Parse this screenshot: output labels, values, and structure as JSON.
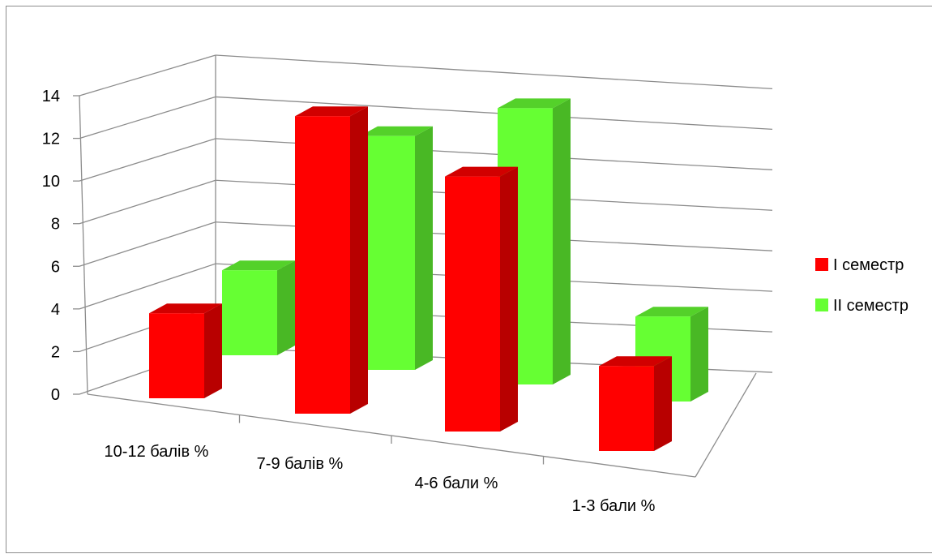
{
  "chart_data": {
    "type": "bar",
    "categories": [
      "10-12 балів %",
      "7-9 балів %",
      "4-6 бали %",
      "1-3 бали %"
    ],
    "series": [
      {
        "name": "І семестр",
        "values": [
          4,
          14,
          12,
          4
        ],
        "color": "#ff0000"
      },
      {
        "name": "ІІ семестр",
        "values": [
          4,
          11,
          13,
          4
        ],
        "color": "#66ff33"
      }
    ],
    "ylim": [
      0,
      14
    ],
    "y_ticks": [
      "0",
      "2",
      "4",
      "6",
      "8",
      "10",
      "12",
      "14"
    ],
    "grid": true,
    "legend_position": "right",
    "title": "",
    "xlabel": "",
    "ylabel": ""
  }
}
